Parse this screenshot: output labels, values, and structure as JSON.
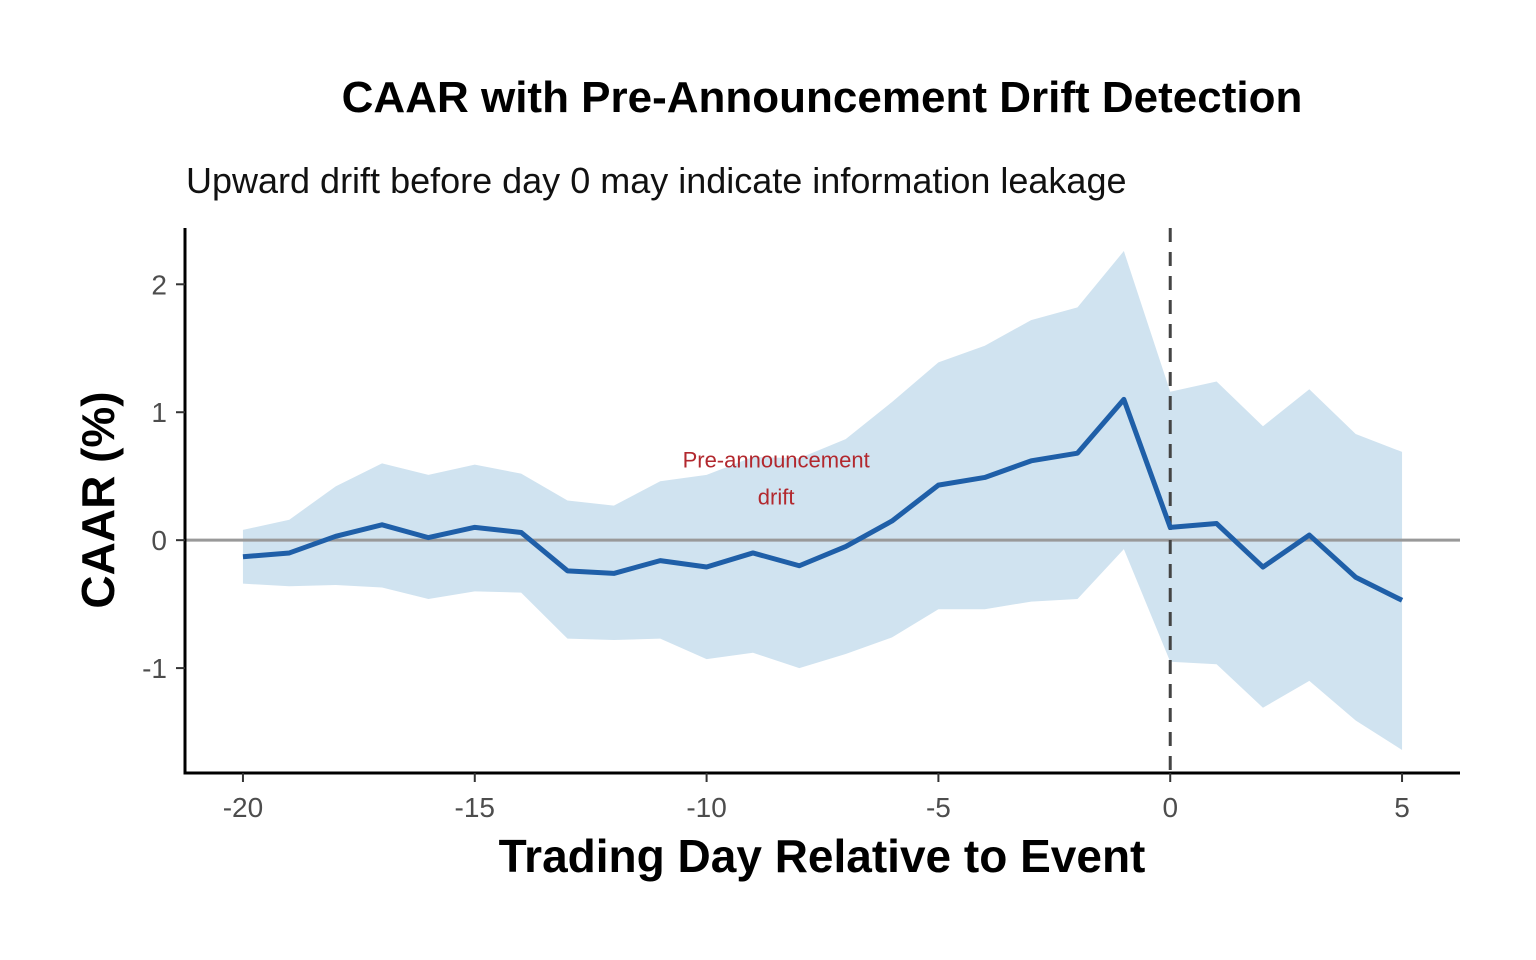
{
  "chart_data": {
    "type": "line",
    "title": "CAAR with Pre-Announcement Drift Detection",
    "subtitle": "Upward drift before day 0 may indicate information leakage",
    "xlabel": "Trading Day Relative to Event",
    "ylabel": "CAAR (%)",
    "xlim": [
      -21.25,
      6.25
    ],
    "ylim": [
      -1.82,
      2.44
    ],
    "x_ticks": [
      -20,
      -15,
      -10,
      -5,
      0,
      5
    ],
    "x_tick_labels": [
      "-20",
      "-15",
      "-10",
      "-5",
      "0",
      "5"
    ],
    "y_ticks": [
      -1,
      0,
      1,
      2
    ],
    "y_tick_labels": [
      "-1",
      "0",
      "1",
      "2"
    ],
    "grid": false,
    "series": [
      {
        "name": "CAAR",
        "x": [
          -20,
          -19,
          -18,
          -17,
          -16,
          -15,
          -14,
          -13,
          -12,
          -11,
          -10,
          -9,
          -8,
          -7,
          -6,
          -5,
          -4,
          -3,
          -2,
          -1,
          0,
          1,
          2,
          3,
          4,
          5
        ],
        "values": [
          -0.13,
          -0.1,
          0.03,
          0.12,
          0.02,
          0.1,
          0.06,
          -0.24,
          -0.26,
          -0.16,
          -0.21,
          -0.1,
          -0.2,
          -0.05,
          0.15,
          0.43,
          0.49,
          0.62,
          0.68,
          1.1,
          0.1,
          0.13,
          -0.21,
          0.04,
          -0.29,
          -0.47
        ]
      }
    ],
    "confidence_band": {
      "x": [
        -20,
        -19,
        -18,
        -17,
        -16,
        -15,
        -14,
        -13,
        -12,
        -11,
        -10,
        -9,
        -8,
        -7,
        -6,
        -5,
        -4,
        -3,
        -2,
        -1,
        0,
        1,
        2,
        3,
        4,
        5
      ],
      "upper": [
        0.08,
        0.16,
        0.42,
        0.6,
        0.51,
        0.59,
        0.52,
        0.31,
        0.27,
        0.46,
        0.51,
        0.65,
        0.64,
        0.79,
        1.08,
        1.39,
        1.52,
        1.72,
        1.82,
        2.26,
        1.16,
        1.24,
        0.89,
        1.18,
        0.83,
        0.69
      ],
      "lower": [
        -0.34,
        -0.36,
        -0.35,
        -0.37,
        -0.46,
        -0.4,
        -0.41,
        -0.77,
        -0.78,
        -0.77,
        -0.93,
        -0.88,
        -1.0,
        -0.89,
        -0.76,
        -0.54,
        -0.54,
        -0.48,
        -0.46,
        -0.07,
        -0.95,
        -0.97,
        -1.31,
        -1.1,
        -1.41,
        -1.64
      ]
    },
    "reference_lines": {
      "horizontal_y": 0,
      "vertical_x": 0
    },
    "annotation": {
      "x": -8.5,
      "y": 0.52,
      "lines": [
        "Pre-announcement",
        "drift"
      ]
    },
    "colors": {
      "line": "#1f5fa8",
      "band": "#d0e3f0",
      "hline": "#999999",
      "vline": "#444444",
      "annotation": "#b2282e",
      "axis": "#000000"
    }
  }
}
